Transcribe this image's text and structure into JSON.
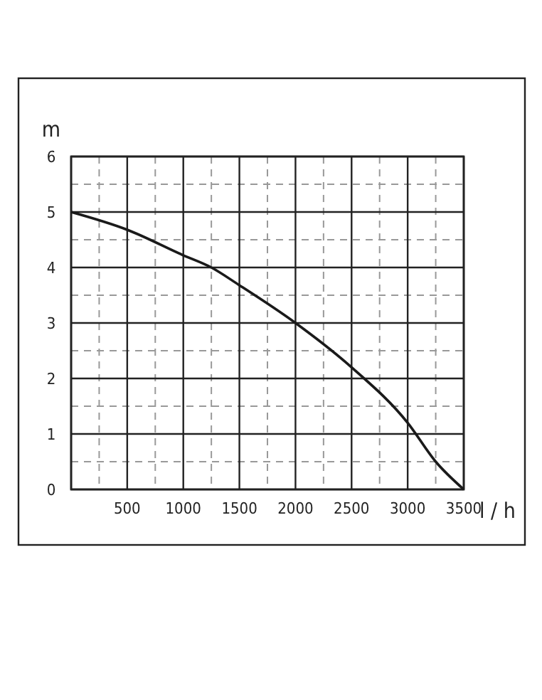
{
  "chart_data": {
    "type": "line",
    "ylabel": "m",
    "xlabel": "l / h",
    "x": [
      0,
      500,
      1000,
      1250,
      1500,
      2000,
      2500,
      3000,
      3250,
      3500
    ],
    "series": [
      {
        "color": "#1a1a1a",
        "values": [
          5.0,
          4.68,
          4.22,
          4.0,
          3.68,
          3.0,
          2.2,
          1.2,
          0.5,
          0
        ]
      }
    ],
    "xlim": [
      0,
      3500
    ],
    "xticks": [
      {
        "value": 0,
        "label": null
      },
      500,
      1000,
      1500,
      2000,
      2500,
      3000,
      3500
    ],
    "ylim": [
      0,
      6
    ],
    "yticks": [
      0,
      1,
      2,
      3,
      4,
      5,
      6
    ],
    "grid": true,
    "line_style": "solid",
    "marker": "none"
  }
}
